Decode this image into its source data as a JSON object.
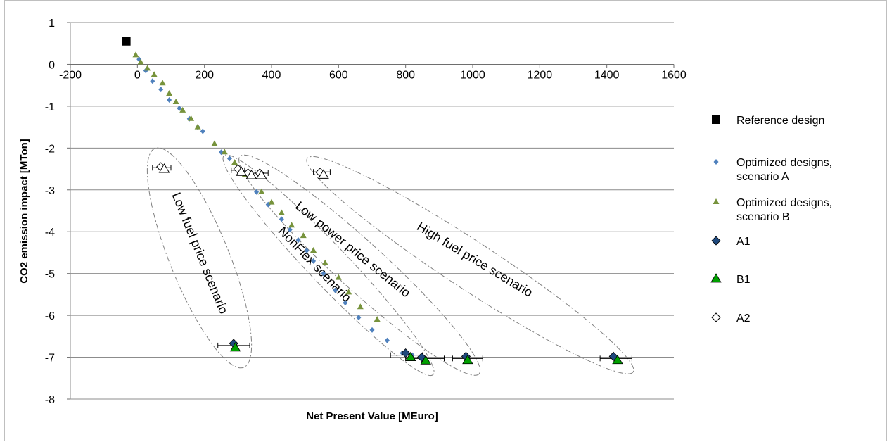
{
  "chart_data": {
    "type": "scatter",
    "title": "",
    "xlabel": "Net Present Value [MEuro]",
    "ylabel": "CO2 emission impact [MTon]",
    "xlim": [
      -200,
      1600
    ],
    "ylim": [
      -8,
      1
    ],
    "x_ticks": [
      -200,
      0,
      200,
      400,
      600,
      800,
      1000,
      1200,
      1400,
      1600
    ],
    "y_ticks": [
      1,
      0,
      -1,
      -2,
      -3,
      -4,
      -5,
      -6,
      -7,
      -8
    ],
    "x_tick_labels": [
      "-200",
      "0",
      "200",
      "400",
      "600",
      "800",
      "1000",
      "1200",
      "1400",
      "1600"
    ],
    "y_tick_labels": [
      "1",
      "0",
      "-1",
      "-2",
      "-3",
      "-4",
      "-5",
      "-6",
      "-7",
      "-8"
    ],
    "grid": "horizontal",
    "legend_position": "right",
    "colors": {
      "reference": "#000000",
      "scenario_a": "#4f81bd",
      "scenario_b": "#77933c",
      "a1": "#1f497d",
      "b1": "#00a000",
      "a2": "#ffffff",
      "ellipse": "#808080"
    },
    "series": [
      {
        "name": "Reference design",
        "marker": "square",
        "points": [
          [
            -33,
            0.55
          ]
        ]
      },
      {
        "name": "Optimized designs, scenario A",
        "marker": "small-diamond",
        "points": [
          [
            5,
            0.12
          ],
          [
            25,
            -0.15
          ],
          [
            45,
            -0.4
          ],
          [
            70,
            -0.6
          ],
          [
            95,
            -0.85
          ],
          [
            125,
            -1.05
          ],
          [
            155,
            -1.3
          ],
          [
            180,
            -1.5
          ],
          [
            195,
            -1.6
          ],
          [
            250,
            -2.1
          ],
          [
            275,
            -2.25
          ],
          [
            310,
            -2.55
          ],
          [
            355,
            -3.05
          ],
          [
            390,
            -3.35
          ],
          [
            430,
            -3.7
          ],
          [
            455,
            -3.95
          ],
          [
            480,
            -4.2
          ],
          [
            505,
            -4.45
          ],
          [
            525,
            -4.7
          ],
          [
            555,
            -5.0
          ],
          [
            590,
            -5.4
          ],
          [
            620,
            -5.7
          ],
          [
            660,
            -6.05
          ],
          [
            700,
            -6.35
          ],
          [
            745,
            -6.6
          ],
          [
            790,
            -6.9
          ],
          [
            820,
            -6.95
          ]
        ]
      },
      {
        "name": "Optimized designs, scenario B",
        "marker": "triangle",
        "points": [
          [
            -5,
            0.22
          ],
          [
            10,
            0.05
          ],
          [
            30,
            -0.1
          ],
          [
            50,
            -0.25
          ],
          [
            75,
            -0.45
          ],
          [
            95,
            -0.7
          ],
          [
            115,
            -0.9
          ],
          [
            135,
            -1.1
          ],
          [
            160,
            -1.3
          ],
          [
            180,
            -1.5
          ],
          [
            230,
            -1.9
          ],
          [
            260,
            -2.1
          ],
          [
            290,
            -2.35
          ],
          [
            320,
            -2.65
          ],
          [
            370,
            -3.05
          ],
          [
            400,
            -3.3
          ],
          [
            430,
            -3.55
          ],
          [
            460,
            -3.85
          ],
          [
            495,
            -4.1
          ],
          [
            525,
            -4.45
          ],
          [
            560,
            -4.75
          ],
          [
            600,
            -5.1
          ],
          [
            630,
            -5.45
          ],
          [
            665,
            -5.8
          ],
          [
            715,
            -6.1
          ]
        ]
      },
      {
        "name": "A1",
        "marker": "diamond",
        "points": [
          [
            287,
            -6.67
          ],
          [
            800,
            -6.9
          ],
          [
            848,
            -7.0
          ],
          [
            980,
            -6.98
          ],
          [
            1420,
            -6.98
          ]
        ]
      },
      {
        "name": "B1",
        "marker": "triangle-large",
        "points": [
          [
            292,
            -6.77
          ],
          [
            815,
            -7.0
          ],
          [
            860,
            -7.08
          ],
          [
            985,
            -7.07
          ],
          [
            1432,
            -7.07
          ]
        ]
      },
      {
        "name": "A2",
        "marker": "open-diamond",
        "points": [
          [
            70,
            -2.45
          ],
          [
            300,
            -2.5
          ],
          [
            330,
            -2.6
          ],
          [
            365,
            -2.6
          ],
          [
            545,
            -2.58
          ]
        ]
      },
      {
        "name": "",
        "marker": "open-triangle",
        "points": [
          [
            80,
            -2.5
          ],
          [
            310,
            -2.57
          ],
          [
            340,
            -2.65
          ],
          [
            370,
            -2.65
          ],
          [
            555,
            -2.64
          ]
        ]
      }
    ],
    "error_bars": [
      {
        "y": -2.47,
        "xmin": 45,
        "xmax": 100
      },
      {
        "y": -2.53,
        "xmin": 280,
        "xmax": 320
      },
      {
        "y": -2.6,
        "xmin": 315,
        "xmax": 390
      },
      {
        "y": -2.57,
        "xmin": 525,
        "xmax": 575
      },
      {
        "y": -6.72,
        "xmin": 240,
        "xmax": 335
      },
      {
        "y": -6.95,
        "xmin": 755,
        "xmax": 850
      },
      {
        "y": -7.03,
        "xmin": 800,
        "xmax": 915
      },
      {
        "y": -7.03,
        "xmin": 940,
        "xmax": 1030
      },
      {
        "y": -7.03,
        "xmin": 1380,
        "xmax": 1475
      }
    ],
    "annotations": [
      {
        "text": "Low fuel price scenario",
        "x": 175,
        "y": -4.55,
        "angle": 68
      },
      {
        "text": "NonFlex scenario",
        "x": 520,
        "y": -4.85,
        "angle": 46
      },
      {
        "text": "Low power price scenario",
        "x": 635,
        "y": -4.5,
        "angle": 39
      },
      {
        "text": "High fuel price scenario",
        "x": 1000,
        "y": -4.75,
        "angle": 31
      }
    ],
    "groups": [
      {
        "label": "Low fuel price scenario",
        "from": [
          70,
          -2.35
        ],
        "to": [
          300,
          -6.9
        ],
        "half_width": 42
      },
      {
        "label": "NonFlex scenario",
        "from": [
          290,
          -2.45
        ],
        "to": [
          850,
          -7.15
        ],
        "half_width": 28
      },
      {
        "label": "Low power price scenario",
        "from": [
          340,
          -2.45
        ],
        "to": [
          985,
          -7.15
        ],
        "half_width": 34
      },
      {
        "label": "High fuel price scenario",
        "from": [
          545,
          -2.45
        ],
        "to": [
          1440,
          -7.15
        ],
        "half_width": 34
      }
    ]
  }
}
